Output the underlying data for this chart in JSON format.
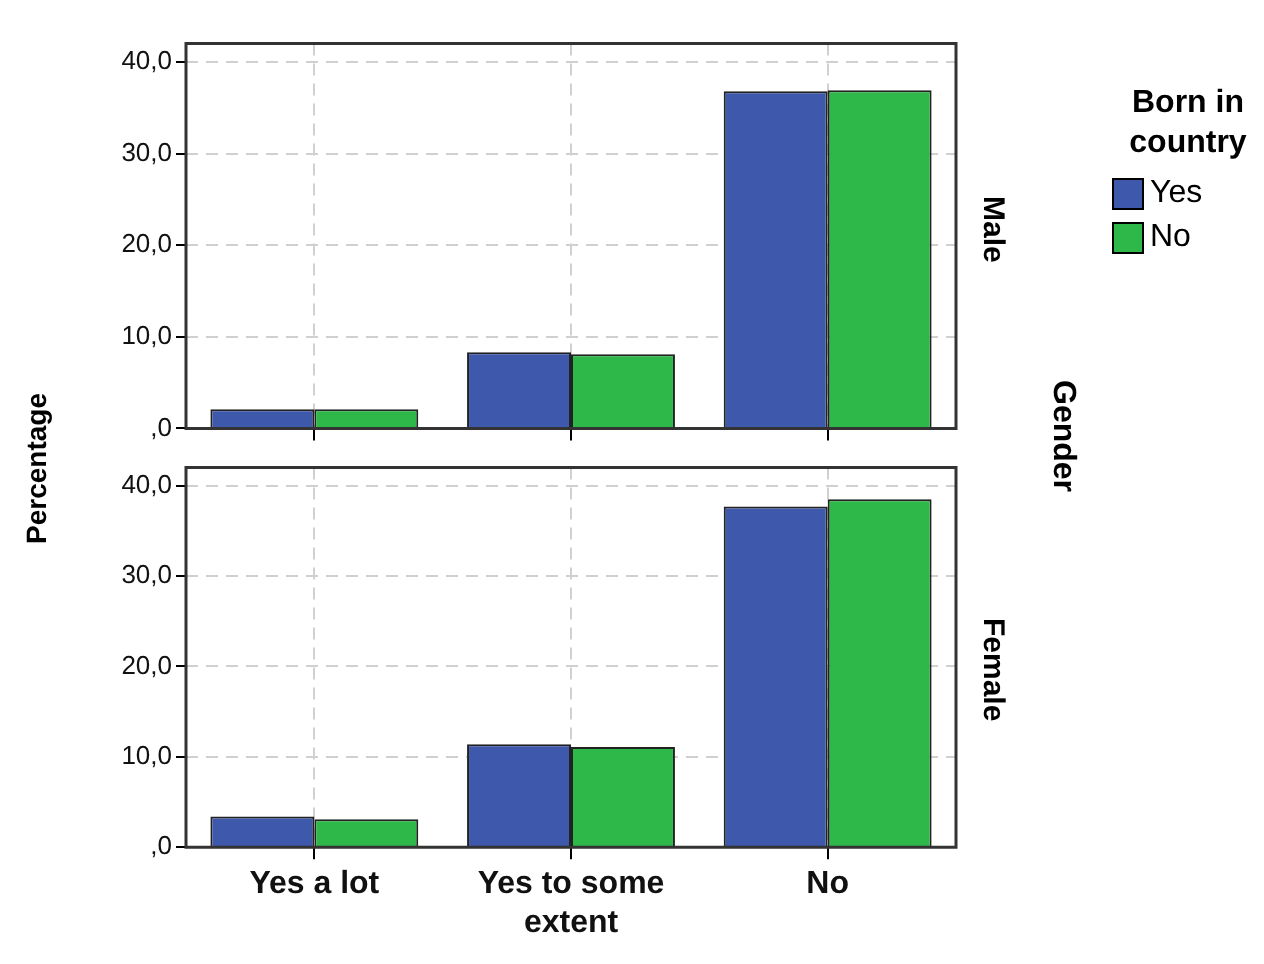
{
  "chart_data": [
    {
      "type": "bar",
      "ylabel": "Percentage",
      "annotations": [
        "Male",
        "Gender"
      ],
      "legend_title": "Born in country",
      "legend": "right",
      "categories": [
        null,
        null,
        null
      ],
      "series": [
        {
          "name": "Yes",
          "color": "#3e58ac",
          "values": [
            2.1,
            8.3,
            36.8
          ]
        },
        {
          "name": "No",
          "color": "#2eb84a",
          "values": [
            2.1,
            8.1,
            36.9
          ]
        }
      ],
      "ylim": [
        0,
        42
      ],
      "yticks": [
        {
          "value": 0,
          "label": ",0"
        },
        {
          "value": 10,
          "label": "10,0"
        },
        {
          "value": 20,
          "label": "20,0"
        },
        {
          "value": 30,
          "label": "30,0"
        },
        {
          "value": 40,
          "label": "40,0"
        }
      ],
      "grid": true,
      "tick_labels": "y"
    },
    {
      "type": "bar",
      "annotations": [
        "Female"
      ],
      "categories": [
        "Yes a lot",
        "Yes to some extent",
        "No"
      ],
      "series": [
        {
          "color": "#3e58ac",
          "values": [
            3.4,
            11.4,
            37.7
          ]
        },
        {
          "color": "#2eb84a",
          "values": [
            3.1,
            11.1,
            38.5
          ]
        }
      ],
      "ylim": [
        0,
        42
      ],
      "yticks": [
        {
          "value": 0,
          "label": ",0"
        },
        {
          "value": 10,
          "label": "10,0"
        },
        {
          "value": 20,
          "label": "20,0"
        },
        {
          "value": 30,
          "label": "30,0"
        },
        {
          "value": 40,
          "label": "40,0"
        }
      ],
      "grid": true
    }
  ]
}
